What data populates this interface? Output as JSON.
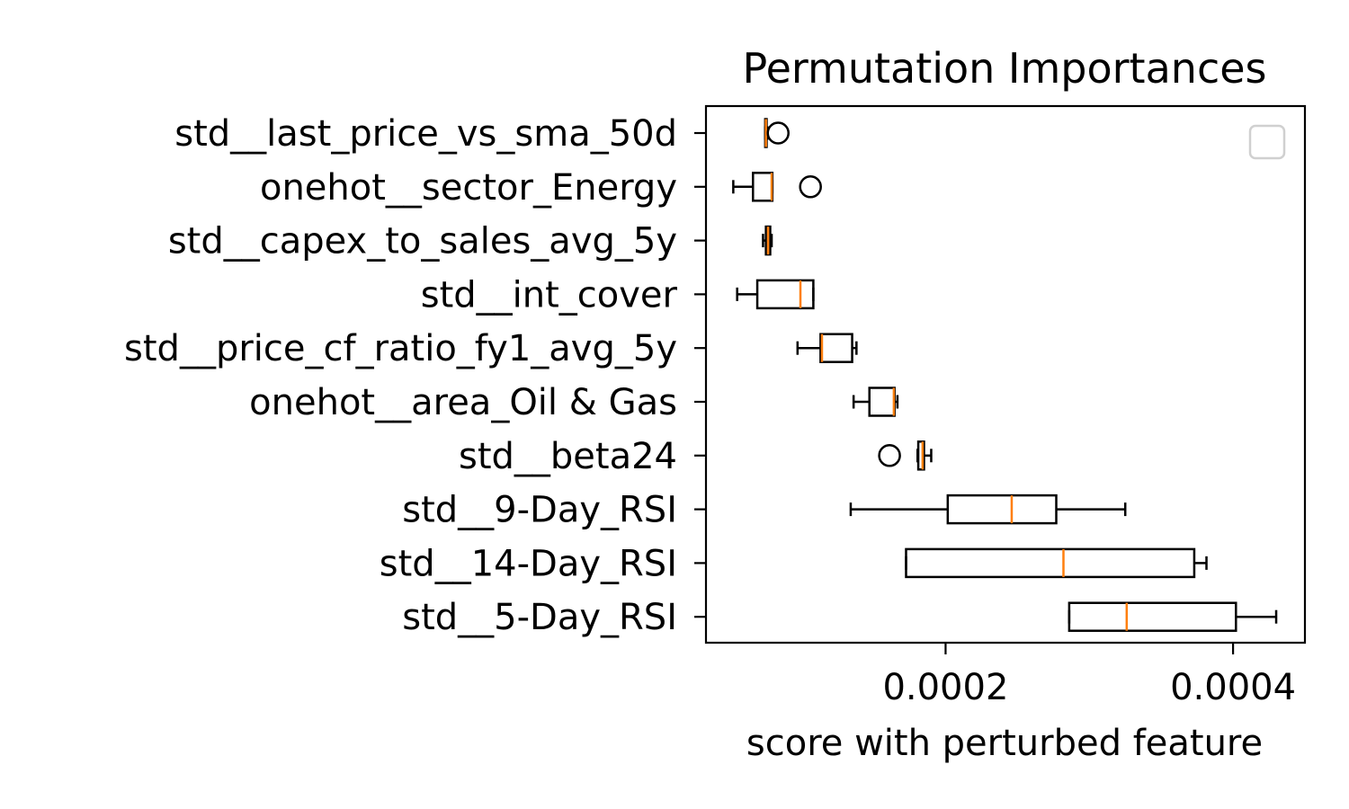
{
  "chart_data": {
    "type": "box",
    "orientation": "horizontal",
    "title": "Permutation Importances",
    "xlabel": "score with perturbed feature",
    "ylabel": "",
    "xlim": [
      3.33e-05,
      0.00045
    ],
    "xticks": [
      {
        "value": 0.0002,
        "label": "0.0002"
      },
      {
        "value": 0.0004,
        "label": "0.0004"
      }
    ],
    "legend": {
      "placement": "top-right",
      "entries": []
    },
    "grid": false,
    "colors": {
      "box": "#000000",
      "median": "#ff7f0e",
      "background": "#ffffff"
    },
    "categories": [
      "std__last_price_vs_sma_50d",
      "onehot__sector_Energy",
      "std__capex_to_sales_avg_5y",
      "std__int_cover",
      "std__price_cf_ratio_fy1_avg_5y",
      "onehot__area_Oil & Gas",
      "std__beta24",
      "std__9-Day_RSI",
      "std__14-Day_RSI",
      "std__5-Day_RSI"
    ],
    "boxes": [
      {
        "whisker_low": 7.45e-05,
        "q1": 7.45e-05,
        "median": 7.5e-05,
        "q3": 7.55e-05,
        "whisker_high": 7.6e-05,
        "outliers": [
          8.35e-05
        ]
      },
      {
        "whisker_low": 5.23e-05,
        "q1": 6.6e-05,
        "median": 7.9e-05,
        "q3": 7.95e-05,
        "whisker_high": 7.95e-05,
        "outliers": [
          0.000106
        ]
      },
      {
        "whisker_low": 7.3e-05,
        "q1": 7.5e-05,
        "median": 7.65e-05,
        "q3": 7.8e-05,
        "whisker_high": 7.9e-05,
        "outliers": []
      },
      {
        "whisker_low": 5.5e-05,
        "q1": 6.9e-05,
        "median": 9.9e-05,
        "q3": 0.000108,
        "whisker_high": 0.000108,
        "outliers": []
      },
      {
        "whisker_low": 9.7e-05,
        "q1": 0.000113,
        "median": 0.000114,
        "q3": 0.000135,
        "whisker_high": 0.000138,
        "outliers": []
      },
      {
        "whisker_low": 0.000136,
        "q1": 0.000147,
        "median": 0.000164,
        "q3": 0.0001645,
        "whisker_high": 0.0001665,
        "outliers": []
      },
      {
        "whisker_low": 0.0001805,
        "q1": 0.000181,
        "median": 0.000184,
        "q3": 0.000185,
        "whisker_high": 0.00019,
        "outliers": [
          0.000161
        ]
      },
      {
        "whisker_low": 0.000134,
        "q1": 0.0002015,
        "median": 0.000246,
        "q3": 0.000277,
        "whisker_high": 0.000325,
        "outliers": []
      },
      {
        "whisker_low": 0.0001725,
        "q1": 0.0001725,
        "median": 0.000282,
        "q3": 0.000373,
        "whisker_high": 0.0003815,
        "outliers": []
      },
      {
        "whisker_low": 0.000286,
        "q1": 0.000286,
        "median": 0.000326,
        "q3": 0.000402,
        "whisker_high": 0.00043,
        "outliers": []
      }
    ]
  }
}
